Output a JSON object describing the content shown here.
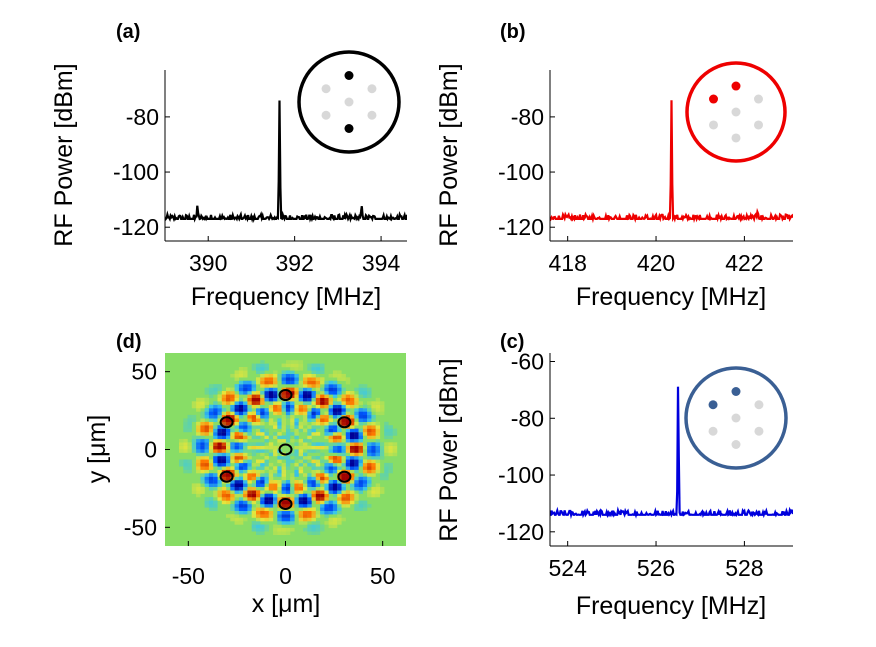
{
  "figure": {
    "panels": [
      "(a)",
      "(b)",
      "(c)",
      "(d)"
    ]
  },
  "colors": {
    "panel_a": "#000000",
    "panel_b": "#ee0000",
    "panel_c": "#0000dd",
    "inset_c_ring": "#3a5f94",
    "inset_gray": "#d8d8d8",
    "field_background": "#88dd66"
  },
  "chart_data": [
    {
      "panel": "(a)",
      "type": "line",
      "xlabel": "Frequency [MHz]",
      "ylabel": "RF Power [dBm]",
      "xlim": [
        389,
        394.6
      ],
      "ylim": [
        -125,
        -63
      ],
      "xticks": [
        390,
        392,
        394
      ],
      "yticks": [
        -80,
        -100,
        -120
      ],
      "grid": false,
      "color": "#000000",
      "noise_floor": -117,
      "peaks": [
        {
          "x": 391.65,
          "y": -74
        },
        {
          "x": 389.75,
          "y": -112
        },
        {
          "x": 393.55,
          "y": -112
        }
      ],
      "inset": {
        "ring_color": "#000000",
        "highlighted": [
          0,
          3
        ],
        "highlight_color": "#000000"
      }
    },
    {
      "panel": "(b)",
      "type": "line",
      "xlabel": "Frequency [MHz]",
      "ylabel": "RF Power [dBm]",
      "xlim": [
        417.6,
        423.1
      ],
      "ylim": [
        -125,
        -63
      ],
      "xticks": [
        418,
        420,
        422
      ],
      "yticks": [
        -80,
        -100,
        -120
      ],
      "grid": false,
      "color": "#ee0000",
      "noise_floor": -117,
      "peaks": [
        {
          "x": 420.35,
          "y": -74
        },
        {
          "x": 422.3,
          "y": -114
        }
      ],
      "inset": {
        "ring_color": "#ee0000",
        "highlighted": [
          0,
          5
        ],
        "highlight_color": "#ee0000"
      }
    },
    {
      "panel": "(c)",
      "type": "line",
      "xlabel": "Frequency [MHz]",
      "ylabel": "RF Power [dBm]",
      "xlim": [
        523.6,
        529.1
      ],
      "ylim": [
        -125,
        -57
      ],
      "xticks": [
        524,
        526,
        528
      ],
      "yticks": [
        -60,
        -80,
        -100,
        -120
      ],
      "grid": false,
      "color": "#0000dd",
      "noise_floor": -114,
      "peaks": [
        {
          "x": 526.5,
          "y": -67
        }
      ],
      "inset": {
        "ring_color": "#3a5f94",
        "highlighted": [
          0,
          5
        ],
        "highlight_color": "#3a5f94"
      }
    },
    {
      "panel": "(d)",
      "type": "heatmap",
      "xlabel": "x [μm]",
      "ylabel": "y [μm]",
      "xlim": [
        -62,
        62
      ],
      "ylim": [
        -62,
        62
      ],
      "xticks": [
        -50,
        0,
        50
      ],
      "yticks": [
        50,
        0,
        -50
      ],
      "grid": false,
      "field_radius": 57,
      "ring_radius": 35,
      "core_markers": [
        {
          "x": 0,
          "y": 35
        },
        {
          "x": 30.3,
          "y": 17.5
        },
        {
          "x": 30.3,
          "y": -17.5
        },
        {
          "x": 0,
          "y": -35
        },
        {
          "x": -30.3,
          "y": -17.5
        },
        {
          "x": -30.3,
          "y": 17.5
        },
        {
          "x": 0,
          "y": 0
        }
      ]
    }
  ]
}
